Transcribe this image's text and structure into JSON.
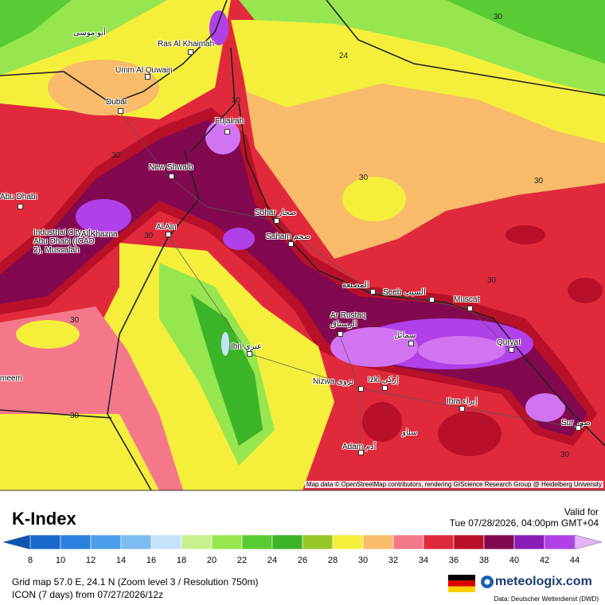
{
  "map": {
    "places": [
      "أبو موسى",
      "Ras Al Khaimah",
      "Umm Al Quwain",
      "Dubai",
      "Fujairah",
      "New Shwaib",
      "Abu Dhabi",
      "Industrial City of Abu Dhabi (ICAD 2), Mussafah",
      "Al Khazna",
      "Al Ain",
      "Sohar صحار",
      "Saham صحم",
      "المصنعة",
      "Seeb السيب",
      "Muscat",
      "Ar Rustaq الرستاق",
      "سمائل",
      "Quryat",
      "Ibri عبري",
      "Nizwa نزوى",
      "Izki إزكي",
      "Ibra إبراء",
      "Sur صور",
      "سناو",
      "Adam آدم",
      "meem"
    ],
    "contour_labels": [
      30,
      24,
      30,
      30,
      30,
      30,
      30,
      30,
      30,
      30,
      30
    ],
    "attribution": "Map data © OpenStreetMap contributors, rendering GIScience Research Group @ Heidelberg University"
  },
  "footer": {
    "title": "K-Index",
    "valid_label": "Valid for",
    "valid_time": "Tue 07/28/2026, 04:00pm GMT+04",
    "colorbar": {
      "ticks": [
        8,
        10,
        12,
        14,
        16,
        18,
        20,
        22,
        24,
        26,
        28,
        30,
        32,
        34,
        36,
        38,
        40,
        42,
        44
      ],
      "colors": [
        "#0c55b4",
        "#1a68cc",
        "#2a80de",
        "#4c9eea",
        "#7dbcf1",
        "#c4e2fa",
        "#c8f08c",
        "#96e650",
        "#5acb32",
        "#3cb428",
        "#98c828",
        "#f5ef3c",
        "#f7bb6a",
        "#f5788a",
        "#e02a3c",
        "#b81028",
        "#820850",
        "#8a1cb8",
        "#b040e8",
        "#d274f2",
        "#e6b4f8"
      ]
    },
    "grid_info": "Grid map 57.0 E, 24.1 N (Zoom level 3 / Resolution 750m)",
    "model_info": "ICON (7 days) from 07/27/2026/12z",
    "brand": "meteologix.com",
    "source": "Data: Deutscher Wetterdienst (DWD)"
  }
}
